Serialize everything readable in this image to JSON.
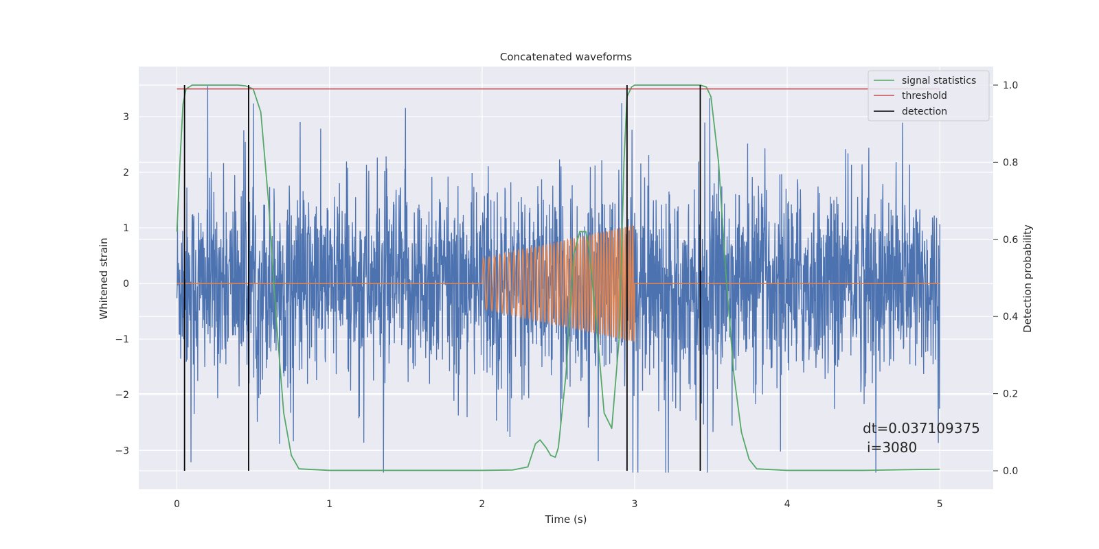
{
  "chart_data": {
    "type": "line",
    "title": "Concatenated waveforms",
    "xlabel": "Time (s)",
    "ylabel": "Whitened strain",
    "y2label": "Detection probability",
    "xlim": [
      -0.25,
      5.35
    ],
    "ylim": [
      -3.7,
      3.9
    ],
    "y2lim": [
      -0.048,
      1.048
    ],
    "xticks": [
      0,
      1,
      2,
      3,
      4,
      5
    ],
    "yticks": [
      -3,
      -2,
      -1,
      0,
      1,
      2,
      3
    ],
    "y2ticks": [
      0.0,
      0.2,
      0.4,
      0.6,
      0.8,
      1.0
    ],
    "ytick_labels": [
      "−3",
      "−2",
      "−1",
      "0",
      "1",
      "2",
      "3"
    ],
    "y2tick_labels": [
      "0.0",
      "0.2",
      "0.4",
      "0.6",
      "0.8",
      "1.0"
    ],
    "grid": true,
    "legend_position": "top-right",
    "series": [
      {
        "role": "strain",
        "color": "#4c72b0",
        "x_range": [
          0,
          5
        ],
        "y_range": [
          -3.4,
          3.55
        ]
      },
      {
        "role": "template",
        "color": "#dd8452",
        "x_range": [
          0,
          5
        ],
        "chirp_x_range": [
          2.0,
          3.0
        ],
        "chirp_amplitude_start": 0.45,
        "chirp_amplitude_end": 1.05
      },
      {
        "name": "signal statistics",
        "color": "#55a868",
        "axis": "right",
        "x": [
          0.0,
          0.02,
          0.04,
          0.06,
          0.1,
          0.2,
          0.3,
          0.4,
          0.45,
          0.5,
          0.55,
          0.6,
          0.65,
          0.7,
          0.75,
          0.8,
          1.0,
          1.5,
          2.0,
          2.2,
          2.3,
          2.35,
          2.38,
          2.42,
          2.45,
          2.48,
          2.5,
          2.55,
          2.6,
          2.64,
          2.68,
          2.7,
          2.75,
          2.8,
          2.85,
          2.9,
          2.93,
          2.95,
          2.98,
          3.0,
          3.1,
          3.3,
          3.43,
          3.47,
          3.5,
          3.55,
          3.6,
          3.65,
          3.7,
          3.75,
          3.8,
          4.0,
          4.5,
          4.8,
          5.0
        ],
        "y": [
          0.62,
          0.8,
          0.95,
          0.99,
          1.0,
          1.0,
          1.0,
          1.0,
          0.998,
          0.99,
          0.93,
          0.7,
          0.4,
          0.15,
          0.04,
          0.005,
          0.001,
          0.001,
          0.001,
          0.002,
          0.01,
          0.07,
          0.08,
          0.06,
          0.04,
          0.035,
          0.06,
          0.25,
          0.56,
          0.62,
          0.62,
          0.58,
          0.38,
          0.15,
          0.11,
          0.35,
          0.8,
          0.97,
          0.995,
          1.0,
          1.0,
          1.0,
          1.0,
          0.995,
          0.97,
          0.8,
          0.5,
          0.25,
          0.1,
          0.03,
          0.005,
          0.001,
          0.001,
          0.003,
          0.004
        ]
      },
      {
        "name": "threshold",
        "color": "#c44e52",
        "axis": "right",
        "value": 0.99,
        "x_range": [
          0,
          5
        ]
      },
      {
        "name": "detection",
        "color": "#000000",
        "axis": "right",
        "x": [
          0.05,
          0.47,
          2.95,
          3.43
        ],
        "y_range": [
          0.0,
          1.0
        ]
      }
    ],
    "annotations": [
      "dt=0.037109375",
      "i=3080"
    ]
  }
}
